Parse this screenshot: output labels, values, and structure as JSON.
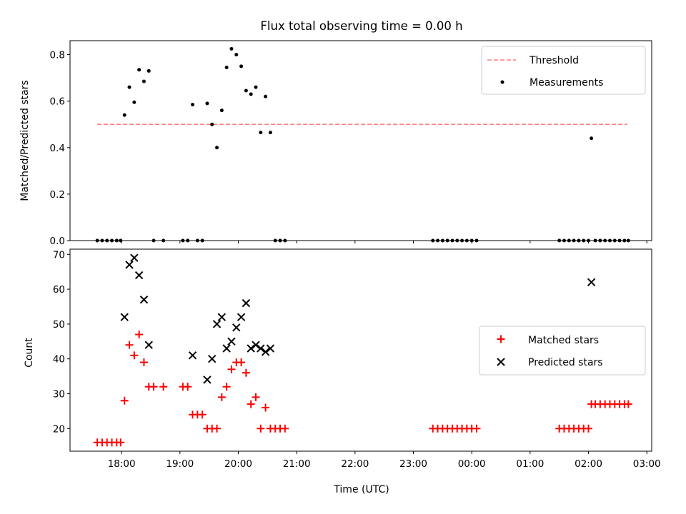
{
  "chart_data": [
    {
      "type": "scatter",
      "title": "Flux total observing time = 0.00 h",
      "xlabel": "",
      "ylabel": "Matched/Predicted stars",
      "xlim": [
        "17:07",
        "03:05"
      ],
      "ylim": [
        0,
        0.86
      ],
      "yticks": [
        "0.0",
        "0.2",
        "0.4",
        "0.6",
        "0.8"
      ],
      "legend_position": "top-right",
      "threshold": {
        "name": "Threshold",
        "value": 0.5,
        "x_range": [
          "17:35",
          "02:40"
        ],
        "color": "#ff7f7f"
      },
      "series": [
        {
          "name": "Measurements",
          "color": "#000000",
          "points": [
            [
              "17:35",
              0
            ],
            [
              "17:40",
              0
            ],
            [
              "17:45",
              0
            ],
            [
              "17:50",
              0
            ],
            [
              "17:55",
              0
            ],
            [
              "17:59",
              0
            ],
            [
              "18:03",
              0.54
            ],
            [
              "18:08",
              0.66
            ],
            [
              "18:13",
              0.595
            ],
            [
              "18:18",
              0.735
            ],
            [
              "18:23",
              0.685
            ],
            [
              "18:28",
              0.73
            ],
            [
              "18:33",
              0
            ],
            [
              "18:43",
              0
            ],
            [
              "19:03",
              0
            ],
            [
              "19:08",
              0
            ],
            [
              "19:13",
              0.585
            ],
            [
              "19:18",
              0
            ],
            [
              "19:23",
              0
            ],
            [
              "19:28",
              0.59
            ],
            [
              "19:33",
              0.5
            ],
            [
              "19:38",
              0.4
            ],
            [
              "19:43",
              0.56
            ],
            [
              "19:48",
              0.745
            ],
            [
              "19:53",
              0.825
            ],
            [
              "19:58",
              0.8
            ],
            [
              "20:03",
              0.75
            ],
            [
              "20:08",
              0.645
            ],
            [
              "20:13",
              0.63
            ],
            [
              "20:18",
              0.66
            ],
            [
              "20:23",
              0.465
            ],
            [
              "20:28",
              0.62
            ],
            [
              "20:33",
              0.465
            ],
            [
              "20:38",
              0
            ],
            [
              "20:43",
              0
            ],
            [
              "20:48",
              0
            ],
            [
              "23:20",
              0
            ],
            [
              "23:25",
              0
            ],
            [
              "23:30",
              0
            ],
            [
              "23:35",
              0
            ],
            [
              "23:40",
              0
            ],
            [
              "23:45",
              0
            ],
            [
              "23:50",
              0
            ],
            [
              "23:55",
              0
            ],
            [
              "00:00",
              0
            ],
            [
              "00:05",
              0
            ],
            [
              "01:30",
              0
            ],
            [
              "01:35",
              0
            ],
            [
              "01:40",
              0
            ],
            [
              "01:45",
              0
            ],
            [
              "01:50",
              0
            ],
            [
              "01:55",
              0
            ],
            [
              "02:00",
              0
            ],
            [
              "02:03",
              0.44
            ],
            [
              "02:07",
              0
            ],
            [
              "02:12",
              0
            ],
            [
              "02:17",
              0
            ],
            [
              "02:22",
              0
            ],
            [
              "02:27",
              0
            ],
            [
              "02:32",
              0
            ],
            [
              "02:37",
              0
            ],
            [
              "02:41",
              0
            ]
          ]
        }
      ]
    },
    {
      "type": "scatter",
      "title": "",
      "xlabel": "Time (UTC)",
      "ylabel": "Count",
      "xlim": [
        "17:07",
        "03:05"
      ],
      "ylim": [
        13.5,
        71.5
      ],
      "yticks": [
        "20",
        "30",
        "40",
        "50",
        "60",
        "70"
      ],
      "xticks": [
        "18:00",
        "19:00",
        "20:00",
        "21:00",
        "22:00",
        "23:00",
        "00:00",
        "01:00",
        "02:00",
        "03:00"
      ],
      "legend_position": "center-right",
      "series": [
        {
          "name": "Matched stars",
          "marker": "+",
          "color": "#ff0000",
          "points": [
            [
              "17:35",
              16
            ],
            [
              "17:40",
              16
            ],
            [
              "17:45",
              16
            ],
            [
              "17:50",
              16
            ],
            [
              "17:55",
              16
            ],
            [
              "17:59",
              16
            ],
            [
              "18:03",
              28
            ],
            [
              "18:08",
              44
            ],
            [
              "18:13",
              41
            ],
            [
              "18:18",
              47
            ],
            [
              "18:23",
              39
            ],
            [
              "18:28",
              32
            ],
            [
              "18:33",
              32
            ],
            [
              "18:43",
              32
            ],
            [
              "19:03",
              32
            ],
            [
              "19:08",
              32
            ],
            [
              "19:13",
              24
            ],
            [
              "19:18",
              24
            ],
            [
              "19:23",
              24
            ],
            [
              "19:28",
              20
            ],
            [
              "19:33",
              20
            ],
            [
              "19:38",
              20
            ],
            [
              "19:43",
              29
            ],
            [
              "19:48",
              32
            ],
            [
              "19:53",
              37
            ],
            [
              "19:58",
              39
            ],
            [
              "20:03",
              39
            ],
            [
              "20:08",
              36
            ],
            [
              "20:13",
              27
            ],
            [
              "20:18",
              29
            ],
            [
              "20:23",
              20
            ],
            [
              "20:28",
              26
            ],
            [
              "20:33",
              20
            ],
            [
              "20:38",
              20
            ],
            [
              "20:43",
              20
            ],
            [
              "20:48",
              20
            ],
            [
              "23:20",
              20
            ],
            [
              "23:25",
              20
            ],
            [
              "23:30",
              20
            ],
            [
              "23:35",
              20
            ],
            [
              "23:40",
              20
            ],
            [
              "23:45",
              20
            ],
            [
              "23:50",
              20
            ],
            [
              "23:55",
              20
            ],
            [
              "00:00",
              20
            ],
            [
              "00:05",
              20
            ],
            [
              "01:30",
              20
            ],
            [
              "01:35",
              20
            ],
            [
              "01:40",
              20
            ],
            [
              "01:45",
              20
            ],
            [
              "01:50",
              20
            ],
            [
              "01:55",
              20
            ],
            [
              "02:00",
              20
            ],
            [
              "02:03",
              27
            ],
            [
              "02:07",
              27
            ],
            [
              "02:12",
              27
            ],
            [
              "02:17",
              27
            ],
            [
              "02:22",
              27
            ],
            [
              "02:27",
              27
            ],
            [
              "02:32",
              27
            ],
            [
              "02:37",
              27
            ],
            [
              "02:41",
              27
            ]
          ]
        },
        {
          "name": "Predicted stars",
          "marker": "x",
          "color": "#000000",
          "points": [
            [
              "18:03",
              52
            ],
            [
              "18:08",
              67
            ],
            [
              "18:13",
              69
            ],
            [
              "18:18",
              64
            ],
            [
              "18:23",
              57
            ],
            [
              "18:28",
              44
            ],
            [
              "19:13",
              41
            ],
            [
              "19:28",
              34
            ],
            [
              "19:33",
              40
            ],
            [
              "19:38",
              50
            ],
            [
              "19:43",
              52
            ],
            [
              "19:48",
              43
            ],
            [
              "19:53",
              45
            ],
            [
              "19:58",
              49
            ],
            [
              "20:03",
              52
            ],
            [
              "20:08",
              56
            ],
            [
              "20:13",
              43
            ],
            [
              "20:18",
              44
            ],
            [
              "20:23",
              43
            ],
            [
              "20:28",
              42
            ],
            [
              "20:33",
              43
            ],
            [
              "02:03",
              62
            ]
          ]
        }
      ]
    }
  ]
}
